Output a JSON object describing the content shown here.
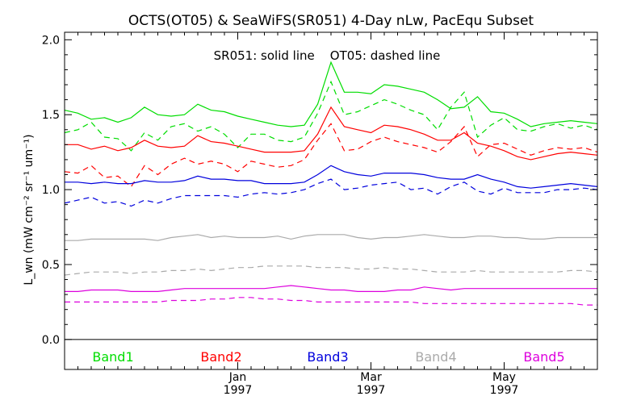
{
  "chart_data": {
    "type": "line",
    "title": "OCTS(OT05) & SeaWiFS(SR051) 4-Day nLw, PacEqu Subset",
    "annotation": "SR051: solid line    OT05: dashed line",
    "ylabel": "L_wn (mW cm⁻² sr⁻¹ um⁻¹)",
    "ylim": [
      -0.2,
      2.05
    ],
    "yticks": [
      "0.0",
      "0.5",
      "1.0",
      "1.5",
      "2.0"
    ],
    "xticks": [
      {
        "label": "Jan",
        "year": "1997",
        "x": 13
      },
      {
        "label": "Mar",
        "year": "1997",
        "x": 23
      },
      {
        "label": "May",
        "year": "1997",
        "x": 33
      }
    ],
    "xlim": [
      0,
      40
    ],
    "series": [
      {
        "name": "Band1",
        "style": "solid",
        "color": "#00dd00",
        "x": [
          0,
          1,
          2,
          3,
          4,
          5,
          6,
          7,
          8,
          9,
          10,
          11,
          12,
          13,
          14,
          15,
          16,
          17,
          18,
          19,
          20,
          21,
          22,
          23,
          24,
          25,
          26,
          27,
          28,
          29,
          30,
          31,
          32,
          33,
          34,
          35,
          36,
          37,
          38,
          39,
          40
        ],
        "values": [
          1.53,
          1.51,
          1.47,
          1.48,
          1.45,
          1.48,
          1.55,
          1.5,
          1.49,
          1.5,
          1.57,
          1.53,
          1.52,
          1.49,
          1.47,
          1.45,
          1.43,
          1.42,
          1.43,
          1.57,
          1.85,
          1.65,
          1.65,
          1.64,
          1.7,
          1.69,
          1.67,
          1.65,
          1.6,
          1.54,
          1.55,
          1.62,
          1.52,
          1.51,
          1.47,
          1.42,
          1.44,
          1.45,
          1.46,
          1.45,
          1.44
        ]
      },
      {
        "name": "Band1",
        "style": "dashed",
        "color": "#00dd00",
        "x": [
          0,
          1,
          2,
          3,
          4,
          5,
          6,
          7,
          8,
          9,
          10,
          11,
          12,
          13,
          14,
          15,
          16,
          17,
          18,
          19,
          20,
          21,
          22,
          23,
          24,
          25,
          26,
          27,
          28,
          29,
          30,
          31,
          32,
          33,
          34,
          35,
          36,
          37,
          38,
          39,
          40
        ],
        "values": [
          1.38,
          1.4,
          1.45,
          1.35,
          1.34,
          1.26,
          1.38,
          1.33,
          1.42,
          1.44,
          1.39,
          1.42,
          1.37,
          1.28,
          1.37,
          1.37,
          1.33,
          1.32,
          1.35,
          1.51,
          1.72,
          1.5,
          1.52,
          1.56,
          1.6,
          1.57,
          1.53,
          1.5,
          1.4,
          1.55,
          1.65,
          1.35,
          1.43,
          1.48,
          1.4,
          1.39,
          1.42,
          1.44,
          1.41,
          1.43,
          1.4
        ]
      },
      {
        "name": "Band2",
        "style": "solid",
        "color": "#ff0000",
        "x": [
          0,
          1,
          2,
          3,
          4,
          5,
          6,
          7,
          8,
          9,
          10,
          11,
          12,
          13,
          14,
          15,
          16,
          17,
          18,
          19,
          20,
          21,
          22,
          23,
          24,
          25,
          26,
          27,
          28,
          29,
          30,
          31,
          32,
          33,
          34,
          35,
          36,
          37,
          38,
          39,
          40
        ],
        "values": [
          1.3,
          1.3,
          1.27,
          1.29,
          1.26,
          1.28,
          1.33,
          1.29,
          1.28,
          1.29,
          1.36,
          1.32,
          1.31,
          1.29,
          1.27,
          1.25,
          1.25,
          1.25,
          1.26,
          1.37,
          1.55,
          1.42,
          1.4,
          1.38,
          1.43,
          1.42,
          1.4,
          1.37,
          1.33,
          1.33,
          1.38,
          1.31,
          1.29,
          1.26,
          1.22,
          1.2,
          1.22,
          1.24,
          1.25,
          1.24,
          1.23
        ]
      },
      {
        "name": "Band2",
        "style": "dashed",
        "color": "#ff0000",
        "x": [
          0,
          1,
          2,
          3,
          4,
          5,
          6,
          7,
          8,
          9,
          10,
          11,
          12,
          13,
          14,
          15,
          16,
          17,
          18,
          19,
          20,
          21,
          22,
          23,
          24,
          25,
          26,
          27,
          28,
          29,
          30,
          31,
          32,
          33,
          34,
          35,
          36,
          37,
          38,
          39,
          40
        ],
        "values": [
          1.12,
          1.11,
          1.16,
          1.08,
          1.09,
          1.02,
          1.16,
          1.1,
          1.17,
          1.21,
          1.17,
          1.19,
          1.17,
          1.12,
          1.19,
          1.17,
          1.15,
          1.16,
          1.2,
          1.33,
          1.44,
          1.26,
          1.27,
          1.32,
          1.35,
          1.32,
          1.3,
          1.28,
          1.25,
          1.32,
          1.42,
          1.22,
          1.3,
          1.31,
          1.27,
          1.23,
          1.26,
          1.28,
          1.27,
          1.28,
          1.25
        ]
      },
      {
        "name": "Band3",
        "style": "solid",
        "color": "#0000dd",
        "x": [
          0,
          1,
          2,
          3,
          4,
          5,
          6,
          7,
          8,
          9,
          10,
          11,
          12,
          13,
          14,
          15,
          16,
          17,
          18,
          19,
          20,
          21,
          22,
          23,
          24,
          25,
          26,
          27,
          28,
          29,
          30,
          31,
          32,
          33,
          34,
          35,
          36,
          37,
          38,
          39,
          40
        ],
        "values": [
          1.05,
          1.05,
          1.04,
          1.05,
          1.04,
          1.04,
          1.06,
          1.05,
          1.05,
          1.06,
          1.09,
          1.07,
          1.07,
          1.06,
          1.06,
          1.04,
          1.04,
          1.04,
          1.05,
          1.1,
          1.16,
          1.12,
          1.1,
          1.09,
          1.11,
          1.11,
          1.11,
          1.1,
          1.08,
          1.07,
          1.07,
          1.1,
          1.07,
          1.05,
          1.02,
          1.01,
          1.02,
          1.03,
          1.04,
          1.03,
          1.02
        ]
      },
      {
        "name": "Band3",
        "style": "dashed",
        "color": "#0000dd",
        "x": [
          0,
          1,
          2,
          3,
          4,
          5,
          6,
          7,
          8,
          9,
          10,
          11,
          12,
          13,
          14,
          15,
          16,
          17,
          18,
          19,
          20,
          21,
          22,
          23,
          24,
          25,
          26,
          27,
          28,
          29,
          30,
          31,
          32,
          33,
          34,
          35,
          36,
          37,
          38,
          39,
          40
        ],
        "values": [
          0.91,
          0.93,
          0.95,
          0.91,
          0.92,
          0.89,
          0.93,
          0.91,
          0.94,
          0.96,
          0.96,
          0.96,
          0.96,
          0.95,
          0.97,
          0.98,
          0.97,
          0.98,
          1.0,
          1.04,
          1.07,
          1.0,
          1.01,
          1.03,
          1.04,
          1.05,
          1.0,
          1.01,
          0.97,
          1.02,
          1.05,
          0.99,
          0.97,
          1.01,
          0.98,
          0.98,
          0.98,
          1.0,
          1.0,
          1.01,
          1.0
        ]
      },
      {
        "name": "Band4",
        "style": "solid",
        "color": "#aaaaaa",
        "x": [
          0,
          1,
          2,
          3,
          4,
          5,
          6,
          7,
          8,
          9,
          10,
          11,
          12,
          13,
          14,
          15,
          16,
          17,
          18,
          19,
          20,
          21,
          22,
          23,
          24,
          25,
          26,
          27,
          28,
          29,
          30,
          31,
          32,
          33,
          34,
          35,
          36,
          37,
          38,
          39,
          40
        ],
        "values": [
          0.66,
          0.66,
          0.67,
          0.67,
          0.67,
          0.67,
          0.67,
          0.66,
          0.68,
          0.69,
          0.7,
          0.68,
          0.69,
          0.68,
          0.68,
          0.68,
          0.69,
          0.67,
          0.69,
          0.7,
          0.7,
          0.7,
          0.68,
          0.67,
          0.68,
          0.68,
          0.69,
          0.7,
          0.69,
          0.68,
          0.68,
          0.69,
          0.69,
          0.68,
          0.68,
          0.67,
          0.67,
          0.68,
          0.68,
          0.68,
          0.68
        ]
      },
      {
        "name": "Band4",
        "style": "dashed",
        "color": "#aaaaaa",
        "x": [
          0,
          1,
          2,
          3,
          4,
          5,
          6,
          7,
          8,
          9,
          10,
          11,
          12,
          13,
          14,
          15,
          16,
          17,
          18,
          19,
          20,
          21,
          22,
          23,
          24,
          25,
          26,
          27,
          28,
          29,
          30,
          31,
          32,
          33,
          34,
          35,
          36,
          37,
          38,
          39,
          40
        ],
        "values": [
          0.43,
          0.44,
          0.45,
          0.45,
          0.45,
          0.44,
          0.45,
          0.45,
          0.46,
          0.46,
          0.47,
          0.46,
          0.47,
          0.48,
          0.48,
          0.49,
          0.49,
          0.49,
          0.49,
          0.48,
          0.48,
          0.48,
          0.47,
          0.47,
          0.48,
          0.47,
          0.47,
          0.46,
          0.45,
          0.45,
          0.45,
          0.46,
          0.45,
          0.45,
          0.45,
          0.45,
          0.45,
          0.45,
          0.46,
          0.46,
          0.45
        ]
      },
      {
        "name": "Band5",
        "style": "solid",
        "color": "#dd00dd",
        "x": [
          0,
          1,
          2,
          3,
          4,
          5,
          6,
          7,
          8,
          9,
          10,
          11,
          12,
          13,
          14,
          15,
          16,
          17,
          18,
          19,
          20,
          21,
          22,
          23,
          24,
          25,
          26,
          27,
          28,
          29,
          30,
          31,
          32,
          33,
          34,
          35,
          36,
          37,
          38,
          39,
          40
        ],
        "values": [
          0.32,
          0.32,
          0.33,
          0.33,
          0.33,
          0.32,
          0.32,
          0.32,
          0.33,
          0.34,
          0.34,
          0.34,
          0.34,
          0.34,
          0.34,
          0.34,
          0.35,
          0.36,
          0.35,
          0.34,
          0.33,
          0.33,
          0.32,
          0.32,
          0.32,
          0.33,
          0.33,
          0.35,
          0.34,
          0.33,
          0.34,
          0.34,
          0.34,
          0.34,
          0.34,
          0.34,
          0.34,
          0.34,
          0.34,
          0.34,
          0.34
        ]
      },
      {
        "name": "Band5",
        "style": "dashed",
        "color": "#dd00dd",
        "x": [
          0,
          1,
          2,
          3,
          4,
          5,
          6,
          7,
          8,
          9,
          10,
          11,
          12,
          13,
          14,
          15,
          16,
          17,
          18,
          19,
          20,
          21,
          22,
          23,
          24,
          25,
          26,
          27,
          28,
          29,
          30,
          31,
          32,
          33,
          34,
          35,
          36,
          37,
          38,
          39,
          40
        ],
        "values": [
          0.25,
          0.25,
          0.25,
          0.25,
          0.25,
          0.25,
          0.25,
          0.25,
          0.26,
          0.26,
          0.26,
          0.27,
          0.27,
          0.28,
          0.28,
          0.27,
          0.27,
          0.26,
          0.26,
          0.25,
          0.25,
          0.25,
          0.25,
          0.25,
          0.25,
          0.25,
          0.25,
          0.24,
          0.24,
          0.24,
          0.24,
          0.24,
          0.24,
          0.24,
          0.24,
          0.24,
          0.24,
          0.24,
          0.24,
          0.23,
          0.23
        ]
      }
    ],
    "legend": [
      {
        "label": "Band1",
        "color": "#00dd00"
      },
      {
        "label": "Band2",
        "color": "#ff0000"
      },
      {
        "label": "Band3",
        "color": "#0000dd"
      },
      {
        "label": "Band4",
        "color": "#aaaaaa"
      },
      {
        "label": "Band5",
        "color": "#dd00dd"
      }
    ],
    "legend_placement": "bottom, inside plot below zero line",
    "grid": false
  }
}
